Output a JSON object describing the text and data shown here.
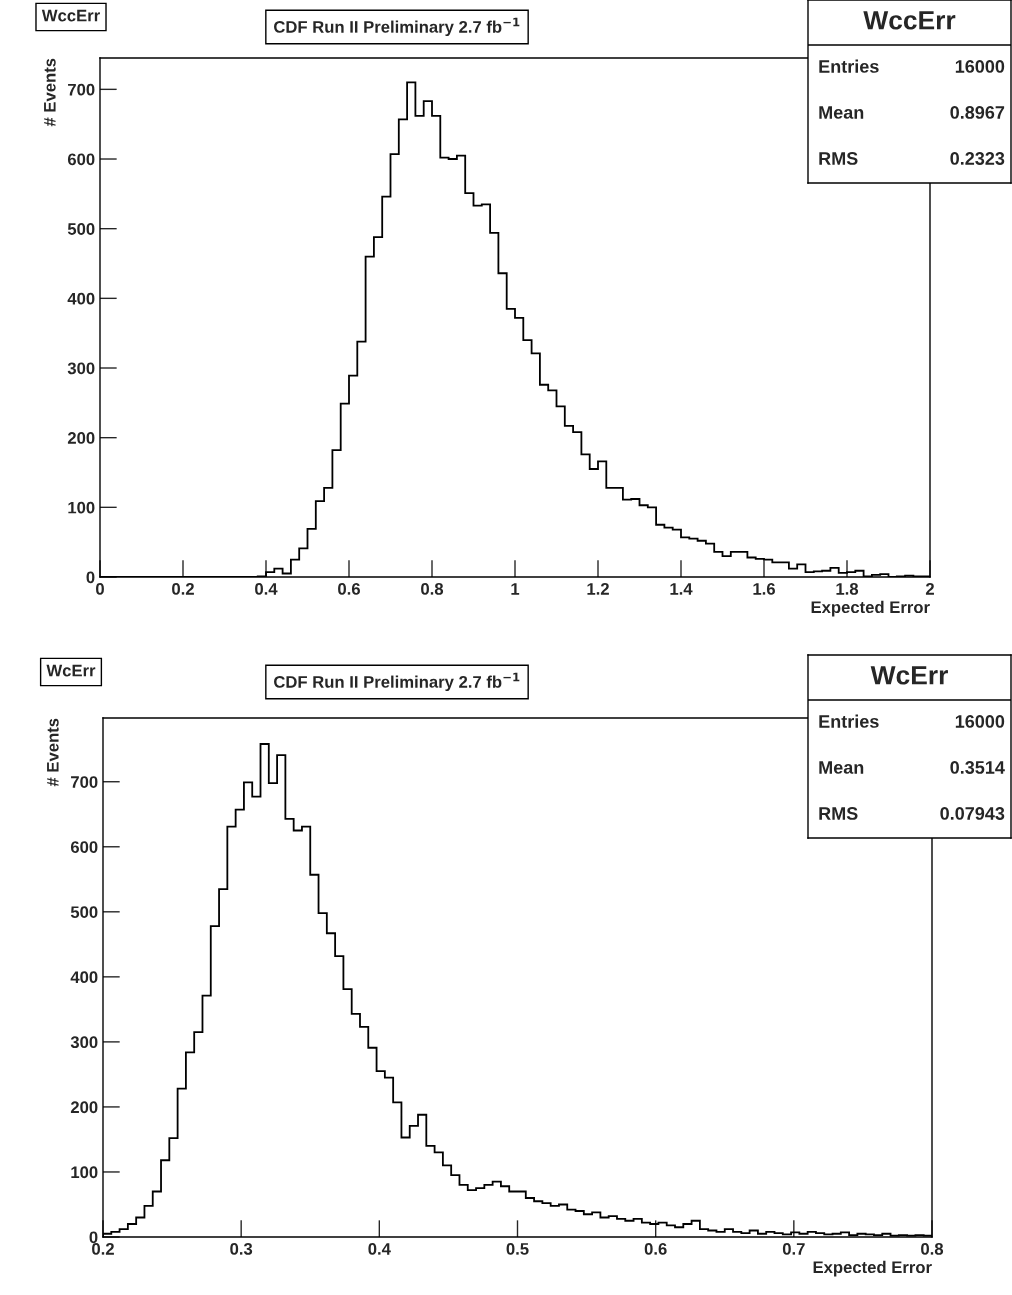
{
  "chart_data": [
    {
      "type": "histogram",
      "title": "CDF Run II Preliminary 2.7 fb$^{−1}$",
      "subtitle": "WccErr",
      "xlabel": "Expected Error",
      "ylabel": "# Events",
      "color": "#000000",
      "bins": [
        0,
        0.02,
        0.04,
        0.06,
        0.08,
        0.1,
        0.12,
        0.14,
        0.16,
        0.18,
        0.2,
        0.22,
        0.24,
        0.26,
        0.28,
        0.3,
        0.32,
        0.34,
        0.36,
        0.38,
        0.4,
        0.42,
        0.44,
        0.46,
        0.48,
        0.5,
        0.52,
        0.54,
        0.56,
        0.58,
        0.6,
        0.62,
        0.64,
        0.66,
        0.68,
        0.7,
        0.72,
        0.74,
        0.76,
        0.78,
        0.8,
        0.82,
        0.84,
        0.86,
        0.88,
        0.9,
        0.92,
        0.94,
        0.96,
        0.98,
        1.0,
        1.02,
        1.04,
        1.06,
        1.08,
        1.1,
        1.12,
        1.14,
        1.16,
        1.18,
        1.2,
        1.22,
        1.24,
        1.26,
        1.28,
        1.3,
        1.32,
        1.34,
        1.36,
        1.38,
        1.4,
        1.42,
        1.44,
        1.46,
        1.48,
        1.5,
        1.52,
        1.54,
        1.56,
        1.58,
        1.6,
        1.62,
        1.64,
        1.66,
        1.68,
        1.7,
        1.72,
        1.74,
        1.76,
        1.78,
        1.8,
        1.82,
        1.84,
        1.86,
        1.88,
        1.9,
        1.92,
        1.94,
        1.96,
        1.98,
        2.0
      ],
      "values": [
        0,
        0,
        0,
        0,
        0,
        0,
        0,
        0,
        0,
        0,
        0,
        0,
        0,
        0,
        0,
        0,
        0,
        0,
        0,
        1,
        7,
        12,
        5,
        25,
        41,
        69,
        109,
        128,
        182,
        249,
        289,
        338,
        460,
        488,
        546,
        607,
        657,
        710,
        662,
        683,
        662,
        602,
        600,
        605,
        551,
        533,
        535,
        494,
        436,
        385,
        372,
        340,
        321,
        276,
        268,
        245,
        217,
        208,
        176,
        155,
        166,
        128,
        128,
        111,
        112,
        103,
        100,
        75,
        71,
        68,
        57,
        55,
        52,
        48,
        36,
        30,
        36,
        36,
        28,
        26,
        25,
        21,
        21,
        12,
        18,
        7,
        8,
        9,
        13,
        6,
        7,
        9,
        1,
        3,
        4,
        0,
        1,
        2,
        1,
        1
      ],
      "xlim": [
        0,
        2
      ],
      "ylim": [
        0,
        745
      ],
      "xticks": [
        0,
        0.2,
        0.4,
        0.6,
        0.8,
        1,
        1.2,
        1.4,
        1.6,
        1.8,
        2
      ],
      "yticks": [
        0,
        100,
        200,
        300,
        400,
        500,
        600,
        700
      ],
      "annotations": [
        "WccErr",
        "Entries",
        "16000",
        "Mean",
        "0.8967",
        "RMS",
        "0.2323"
      ]
    },
    {
      "type": "histogram",
      "title": "CDF Run II Preliminary 2.7 fb$^{−1}$",
      "subtitle": "WcErr",
      "xlabel": "Expected Error",
      "ylabel": "# Events",
      "color": "#000000",
      "bins": [
        0.2,
        0.206,
        0.212,
        0.218,
        0.224,
        0.23,
        0.236,
        0.242,
        0.248,
        0.254,
        0.26,
        0.266,
        0.272,
        0.278,
        0.284,
        0.29,
        0.296,
        0.302,
        0.308,
        0.314,
        0.32,
        0.326,
        0.332,
        0.338,
        0.344,
        0.35,
        0.356,
        0.362,
        0.368,
        0.374,
        0.38,
        0.386,
        0.392,
        0.398,
        0.404,
        0.41,
        0.416,
        0.422,
        0.428,
        0.434,
        0.44,
        0.446,
        0.452,
        0.458,
        0.464,
        0.47,
        0.476,
        0.482,
        0.488,
        0.494,
        0.5,
        0.506,
        0.512,
        0.518,
        0.524,
        0.53,
        0.536,
        0.542,
        0.548,
        0.554,
        0.56,
        0.566,
        0.572,
        0.578,
        0.584,
        0.59,
        0.596,
        0.602,
        0.608,
        0.614,
        0.62,
        0.626,
        0.632,
        0.638,
        0.644,
        0.65,
        0.656,
        0.662,
        0.668,
        0.674,
        0.68,
        0.686,
        0.692,
        0.698,
        0.704,
        0.71,
        0.716,
        0.722,
        0.728,
        0.734,
        0.74,
        0.746,
        0.752,
        0.758,
        0.764,
        0.77,
        0.776,
        0.782,
        0.788,
        0.794,
        0.8
      ],
      "values": [
        5,
        8,
        12,
        20,
        30,
        48,
        70,
        118,
        152,
        228,
        284,
        315,
        371,
        478,
        535,
        631,
        657,
        699,
        677,
        758,
        698,
        741,
        643,
        625,
        631,
        557,
        498,
        467,
        432,
        381,
        343,
        323,
        291,
        255,
        245,
        207,
        153,
        171,
        188,
        140,
        130,
        110,
        95,
        80,
        72,
        75,
        80,
        85,
        78,
        70,
        70,
        60,
        55,
        52,
        48,
        50,
        42,
        40,
        35,
        38,
        30,
        32,
        28,
        25,
        28,
        22,
        20,
        22,
        18,
        15,
        20,
        25,
        12,
        10,
        8,
        12,
        8,
        6,
        10,
        5,
        8,
        6,
        4,
        7,
        5,
        8,
        6,
        4,
        5,
        7,
        3,
        5,
        4,
        3,
        5,
        2,
        3,
        2,
        3,
        2
      ],
      "xlim": [
        0.2,
        0.8
      ],
      "ylim": [
        0,
        798
      ],
      "xticks": [
        0.2,
        0.3,
        0.4,
        0.5,
        0.6,
        0.7,
        0.8
      ],
      "yticks": [
        0,
        100,
        200,
        300,
        400,
        500,
        600,
        700
      ],
      "annotations": [
        "WcErr",
        "Entries",
        "16000",
        "Mean",
        "0.3514",
        "RMS",
        "0.07943"
      ]
    }
  ]
}
